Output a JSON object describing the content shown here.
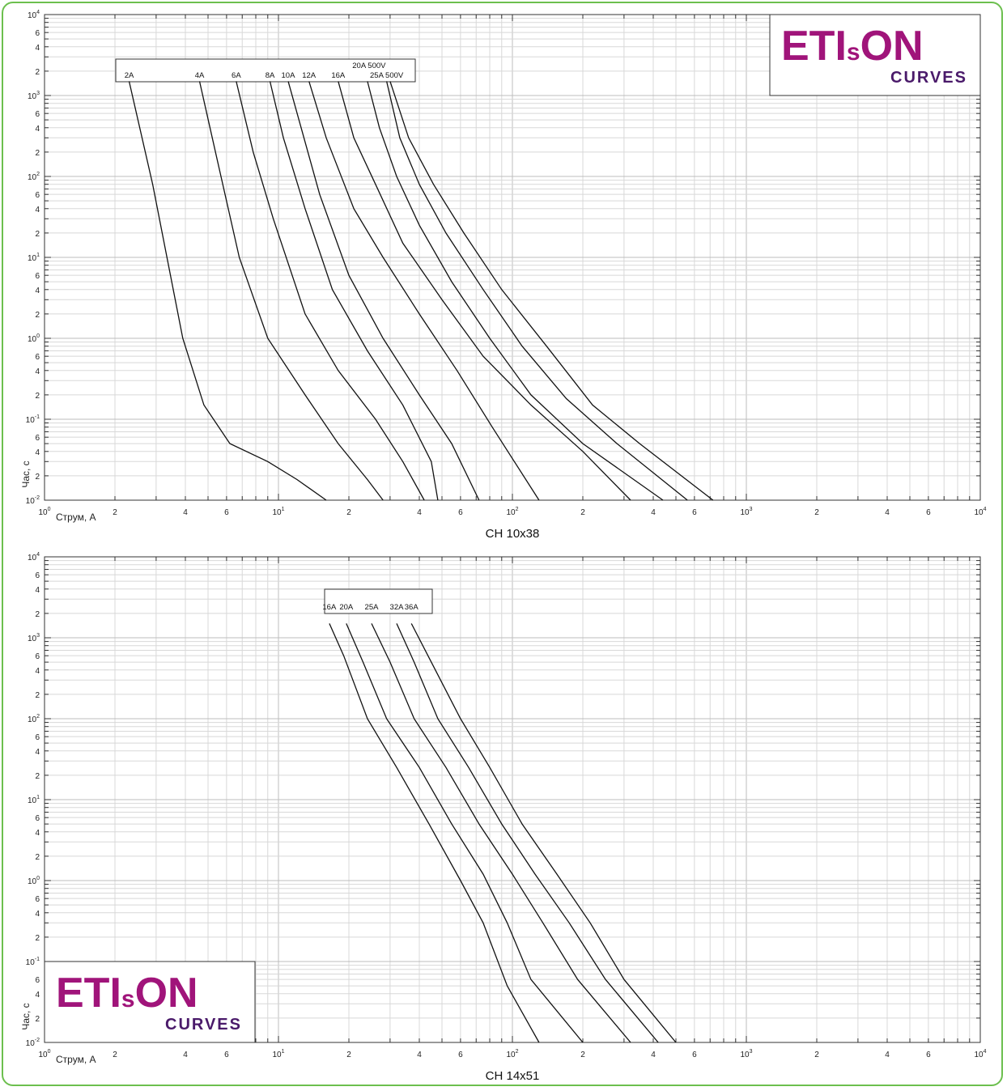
{
  "colors": {
    "frame": "#6cbf4e",
    "curve": "#111111",
    "grid_minor": "#d8d8d8",
    "grid_major": "#bdbdbd",
    "logo_primary": "#a0147a",
    "logo_secondary": "#4a1a6a"
  },
  "logo": {
    "main": "ETI",
    "small": "s",
    "tail": "ON",
    "sub": "CURVES"
  },
  "chart_data": [
    {
      "type": "line",
      "title": "CH 10x38",
      "xlabel": "Струм, А",
      "ylabel": "Час, с",
      "xscale": "log",
      "yscale": "log",
      "xlim": [
        1,
        10000
      ],
      "ylim": [
        0.01,
        10000
      ],
      "grid": true,
      "legend": "labels-in-box-top-left",
      "series": [
        {
          "name": "2A",
          "x": [
            2.3,
            2.9,
            3.9,
            4.8,
            6.2,
            9,
            12,
            16
          ],
          "y": [
            1500,
            80,
            1.0,
            0.15,
            0.05,
            0.03,
            0.018,
            0.01
          ]
        },
        {
          "name": "4A",
          "x": [
            4.6,
            5.5,
            6.8,
            9,
            13,
            18,
            24,
            28
          ],
          "y": [
            1500,
            150,
            10,
            1.0,
            0.2,
            0.05,
            0.018,
            0.01
          ]
        },
        {
          "name": "6A",
          "x": [
            6.6,
            7.8,
            9.5,
            13,
            18,
            26,
            34,
            42
          ],
          "y": [
            1500,
            200,
            30,
            2.0,
            0.4,
            0.1,
            0.03,
            0.01
          ]
        },
        {
          "name": "8A",
          "x": [
            9.2,
            10.5,
            13,
            17,
            24,
            34,
            45,
            48
          ],
          "y": [
            1500,
            300,
            40,
            4.0,
            0.7,
            0.15,
            0.03,
            0.01
          ]
        },
        {
          "name": "10A",
          "x": [
            11,
            12.5,
            15,
            20,
            28,
            40,
            55,
            72
          ],
          "y": [
            1500,
            400,
            60,
            6.0,
            1.0,
            0.2,
            0.05,
            0.01
          ]
        },
        {
          "name": "12A",
          "x": [
            13.5,
            16,
            21,
            28,
            40,
            58,
            82,
            130
          ],
          "y": [
            1500,
            300,
            40,
            10,
            2.0,
            0.4,
            0.08,
            0.01
          ]
        },
        {
          "name": "16A",
          "x": [
            18,
            21,
            26,
            34,
            50,
            75,
            120,
            200,
            320
          ],
          "y": [
            1500,
            300,
            80,
            15,
            3.0,
            0.6,
            0.15,
            0.04,
            0.01
          ]
        },
        {
          "name": "20A 500V",
          "x": [
            24,
            27,
            32,
            40,
            55,
            80,
            120,
            200,
            440
          ],
          "y": [
            1500,
            400,
            100,
            25,
            5.0,
            1.0,
            0.2,
            0.05,
            0.01
          ]
        },
        {
          "name": "25A 500V",
          "x": [
            29,
            33,
            40,
            52,
            75,
            110,
            170,
            280,
            560
          ],
          "y": [
            1500,
            300,
            80,
            20,
            4.0,
            0.8,
            0.18,
            0.05,
            0.01
          ]
        },
        {
          "name": "",
          "x": [
            30,
            36,
            46,
            62,
            90,
            140,
            220,
            350,
            720
          ],
          "y": [
            1500,
            300,
            80,
            20,
            4.0,
            0.8,
            0.15,
            0.05,
            0.01
          ]
        }
      ],
      "x_ticks": [
        "10^0",
        "2",
        "4",
        "6",
        "10^1",
        "2",
        "4",
        "6",
        "10^2",
        "2",
        "4",
        "6",
        "10^3",
        "2",
        "4",
        "6",
        "10^4"
      ],
      "y_ticks": [
        "10^-2",
        "2",
        "4",
        "6",
        "10^-1",
        "2",
        "4",
        "6",
        "10^0",
        "2",
        "4",
        "6",
        "10^1",
        "2",
        "4",
        "6",
        "10^2",
        "2",
        "4",
        "6",
        "10^3",
        "2",
        "4",
        "6",
        "10^4"
      ]
    },
    {
      "type": "line",
      "title": "CH 14x51",
      "xlabel": "Струм, А",
      "ylabel": "Час, с",
      "xscale": "log",
      "yscale": "log",
      "xlim": [
        1,
        10000
      ],
      "ylim": [
        0.01,
        10000
      ],
      "grid": true,
      "legend": "labels-in-box-top-center",
      "series": [
        {
          "name": "16A",
          "x": [
            16.5,
            19,
            24,
            32,
            44,
            60,
            75,
            95,
            130
          ],
          "y": [
            1500,
            600,
            100,
            25,
            5,
            1.0,
            0.3,
            0.05,
            0.01
          ]
        },
        {
          "name": "20A",
          "x": [
            19.5,
            23,
            29,
            40,
            55,
            75,
            95,
            120,
            200
          ],
          "y": [
            1500,
            500,
            100,
            25,
            5,
            1.2,
            0.3,
            0.06,
            0.01
          ]
        },
        {
          "name": "25A",
          "x": [
            25,
            30,
            38,
            52,
            72,
            100,
            135,
            190,
            320
          ],
          "y": [
            1500,
            500,
            100,
            25,
            5,
            1.2,
            0.3,
            0.06,
            0.01
          ]
        },
        {
          "name": "32A",
          "x": [
            32,
            38,
            48,
            65,
            90,
            125,
            175,
            250,
            420
          ],
          "y": [
            1500,
            500,
            100,
            25,
            5,
            1.2,
            0.3,
            0.06,
            0.01
          ]
        },
        {
          "name": "36A",
          "x": [
            37,
            45,
            60,
            80,
            110,
            155,
            215,
            300,
            500
          ],
          "y": [
            1500,
            500,
            100,
            25,
            5,
            1.2,
            0.3,
            0.06,
            0.01
          ]
        }
      ],
      "x_ticks": [
        "10^0",
        "2",
        "4",
        "6",
        "10^1",
        "2",
        "4",
        "6",
        "10^2",
        "2",
        "4",
        "6",
        "10^3",
        "2",
        "4",
        "6",
        "10^4"
      ],
      "y_ticks": [
        "10^-2",
        "2",
        "4",
        "6",
        "10^-1",
        "2",
        "4",
        "6",
        "10^0",
        "2",
        "4",
        "6",
        "10^1",
        "2",
        "4",
        "6",
        "10^2",
        "2",
        "4",
        "6",
        "10^3",
        "2",
        "4",
        "6",
        "10^4"
      ]
    }
  ]
}
